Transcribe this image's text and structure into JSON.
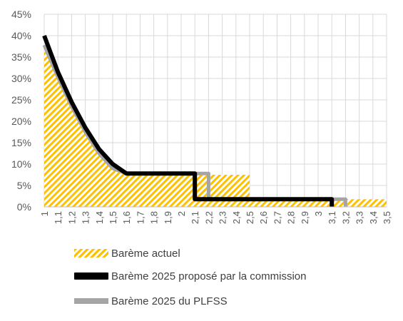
{
  "chart_data": {
    "type": "line",
    "title": "",
    "xlabel": "",
    "ylabel": "",
    "ylim": [
      0,
      0.45
    ],
    "yticks": [
      "0%",
      "5%",
      "10%",
      "15%",
      "20%",
      "25%",
      "30%",
      "35%",
      "40%",
      "45%"
    ],
    "x": [
      "1",
      "1,1",
      "1,2",
      "1,3",
      "1,4",
      "1,5",
      "1,6",
      "1,7",
      "1,8",
      "1,9",
      "2",
      "2,1",
      "2,2",
      "2,3",
      "2,4",
      "2,5",
      "2,6",
      "2,7",
      "2,8",
      "2,9",
      "3",
      "3,1",
      "3,2",
      "3,3",
      "3,4",
      "3,5"
    ],
    "x_values": [
      1,
      1.1,
      1.2,
      1.3,
      1.4,
      1.5,
      1.6,
      1.7,
      1.8,
      1.9,
      2,
      2.1,
      2.2,
      2.3,
      2.4,
      2.5,
      2.6,
      2.7,
      2.8,
      2.9,
      3,
      3.1,
      3.2,
      3.3,
      3.4,
      3.5
    ],
    "grid": true,
    "legend_position": "bottom",
    "series": [
      {
        "name": "Barème actuel",
        "style": "hatched-area",
        "color": "#FFC000",
        "points": [
          [
            1,
            0.3781
          ],
          [
            1.1,
            0.303
          ],
          [
            1.2,
            0.235
          ],
          [
            1.3,
            0.175
          ],
          [
            1.4,
            0.125
          ],
          [
            1.5,
            0.09
          ],
          [
            1.6,
            0.075
          ],
          [
            2.2,
            0.075
          ],
          [
            2.2,
            0.075
          ],
          [
            2.5,
            0.075
          ],
          [
            2.5,
            0.018
          ],
          [
            3.5,
            0.018
          ]
        ]
      },
      {
        "name": "Barème 2025 proposé par la commission",
        "style": "line",
        "color": "#000000",
        "points": [
          [
            1,
            0.4
          ],
          [
            1.1,
            0.315
          ],
          [
            1.2,
            0.245
          ],
          [
            1.3,
            0.185
          ],
          [
            1.4,
            0.135
          ],
          [
            1.5,
            0.1
          ],
          [
            1.6,
            0.078
          ],
          [
            2.1,
            0.078
          ],
          [
            2.1,
            0.018
          ],
          [
            3.1,
            0.018
          ],
          [
            3.1,
            0
          ]
        ]
      },
      {
        "name": "Barème 2025 du PLFSS",
        "style": "line",
        "color": "#A5A5A5",
        "points": [
          [
            1,
            0.3781
          ],
          [
            1.1,
            0.303
          ],
          [
            1.2,
            0.235
          ],
          [
            1.3,
            0.175
          ],
          [
            1.4,
            0.125
          ],
          [
            1.5,
            0.09
          ],
          [
            1.6,
            0.078
          ],
          [
            2.2,
            0.078
          ],
          [
            2.2,
            0.018
          ],
          [
            3.2,
            0.018
          ],
          [
            3.2,
            0
          ]
        ]
      }
    ]
  },
  "legend": {
    "items": [
      "Barème actuel",
      "Barème 2025 proposé par la commission",
      "Barème 2025 du PLFSS"
    ]
  },
  "colors": {
    "grid": "#D9D9D9",
    "axis": "#BFBFBF",
    "tick_text": "#595959",
    "actuel": "#FFC000",
    "commission": "#000000",
    "plfss": "#A5A5A5"
  }
}
